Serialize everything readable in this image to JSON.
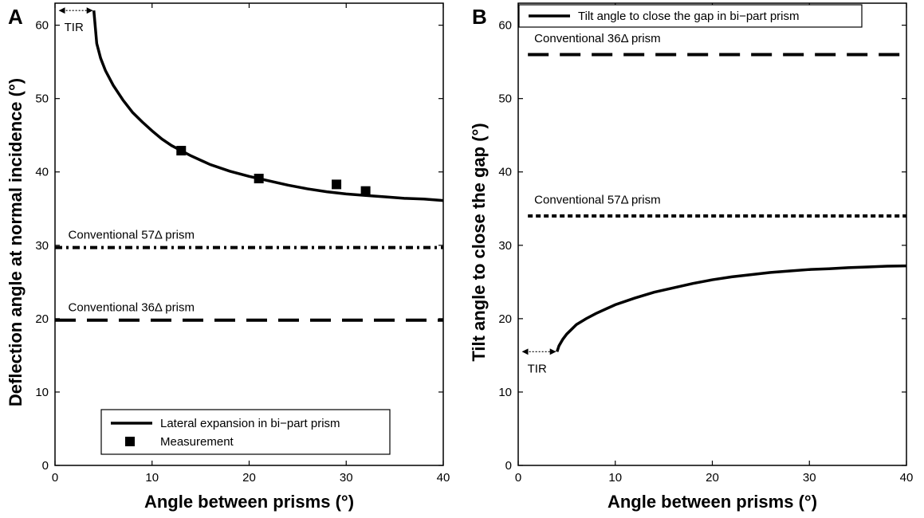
{
  "chart_data": [
    {
      "type": "line",
      "panel_label": "A",
      "xlabel": "Angle between prisms (°)",
      "ylabel": "Deflection angle at normal incidence (°)",
      "xlim": [
        0,
        40
      ],
      "ylim": [
        0,
        63
      ],
      "xticks": [
        0,
        10,
        20,
        30,
        40
      ],
      "yticks": [
        0,
        10,
        20,
        30,
        40,
        50,
        60
      ],
      "series": [
        {
          "name": "Lateral expansion in bi−part prism",
          "style": "solid",
          "x": [
            4.0,
            4.3,
            4.7,
            5.2,
            6,
            7,
            8,
            9,
            10,
            11,
            12,
            13,
            14,
            16,
            18,
            20,
            22,
            24,
            26,
            28,
            30,
            32,
            34,
            36,
            38,
            40
          ],
          "y": [
            62,
            57.5,
            55.5,
            53.8,
            51.8,
            49.8,
            48.1,
            46.8,
            45.6,
            44.5,
            43.6,
            42.9,
            42.2,
            41.0,
            40.1,
            39.4,
            38.8,
            38.2,
            37.7,
            37.3,
            37.0,
            36.8,
            36.6,
            36.4,
            36.3,
            36.1
          ]
        },
        {
          "name": "Measurement",
          "style": "square-markers",
          "x": [
            13,
            21,
            29,
            32
          ],
          "y": [
            42.9,
            39.1,
            38.3,
            37.4
          ]
        },
        {
          "name": "Conventional 57Δ prism",
          "style": "dash-dot",
          "x": [
            0,
            40
          ],
          "y": [
            29.7,
            29.7
          ]
        },
        {
          "name": "Conventional 36Δ prism",
          "style": "long-dash",
          "x": [
            0,
            40
          ],
          "y": [
            19.8,
            19.8
          ]
        }
      ],
      "annotations": [
        {
          "text": "TIR",
          "x_range": [
            0.3,
            4.0
          ],
          "y": 62
        },
        {
          "text": "Conventional 57Δ prism",
          "x": 0.7,
          "y": 30.9
        },
        {
          "text": "Conventional 36Δ prism",
          "x": 0.7,
          "y": 21.0
        }
      ],
      "legend": {
        "placement": "bottom-center",
        "entries": [
          "Lateral expansion in bi−part prism",
          "Measurement"
        ]
      }
    },
    {
      "type": "line",
      "panel_label": "B",
      "xlabel": "Angle between prisms (°)",
      "ylabel": "Tilt angle to close the gap (°)",
      "xlim": [
        0,
        40
      ],
      "ylim": [
        0,
        63
      ],
      "xticks": [
        0,
        10,
        20,
        30,
        40
      ],
      "yticks": [
        0,
        10,
        20,
        30,
        40,
        50,
        60
      ],
      "series": [
        {
          "name": "Tilt angle to close the gap in bi−part prism",
          "style": "solid",
          "x": [
            4.0,
            4.2,
            4.6,
            5,
            6,
            7,
            8,
            10,
            12,
            14,
            16,
            18,
            20,
            22,
            24,
            26,
            28,
            30,
            32,
            34,
            36,
            38,
            40
          ],
          "y": [
            15.5,
            16.3,
            17.2,
            17.9,
            19.2,
            20.0,
            20.7,
            21.9,
            22.8,
            23.6,
            24.2,
            24.8,
            25.3,
            25.7,
            26.0,
            26.3,
            26.5,
            26.7,
            26.8,
            26.95,
            27.05,
            27.15,
            27.2
          ]
        },
        {
          "name": "Conventional 57Δ prism",
          "style": "dotted",
          "x": [
            1,
            40
          ],
          "y": [
            34,
            34
          ]
        },
        {
          "name": "Conventional 36Δ prism",
          "style": "long-dash",
          "x": [
            1,
            40
          ],
          "y": [
            56,
            56
          ]
        }
      ],
      "annotations": [
        {
          "text": "TIR",
          "x_range": [
            0.3,
            4.0
          ],
          "y": 15.5
        },
        {
          "text": "Conventional 36Δ prism",
          "x": 1,
          "y": 57.7
        },
        {
          "text": "Conventional 57Δ prism",
          "x": 1,
          "y": 35.7
        }
      ],
      "legend": {
        "placement": "top",
        "entries": [
          "Tilt angle to close the gap in bi−part prism"
        ]
      }
    }
  ]
}
